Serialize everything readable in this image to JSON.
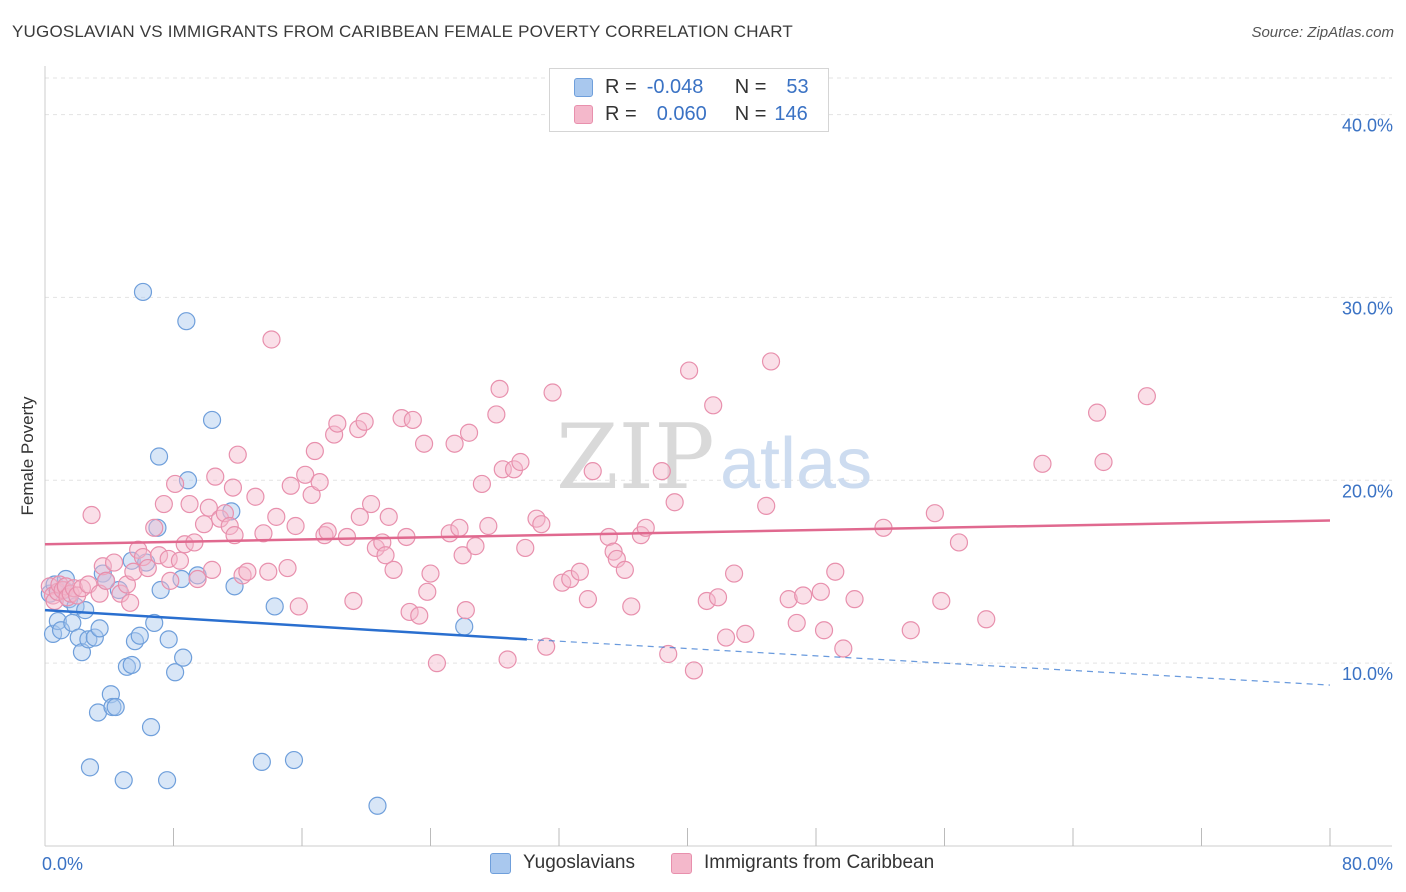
{
  "title": "YUGOSLAVIAN VS IMMIGRANTS FROM CARIBBEAN FEMALE POVERTY CORRELATION CHART",
  "source": "Source: ZipAtlas.com",
  "watermark": {
    "zip": "ZIP",
    "atlas": "atlas"
  },
  "colors": {
    "blue_fill": "#a9c8ee",
    "blue_stroke": "#6f9fdb",
    "blue_line": "#2a6fcf",
    "pink_fill": "#f4b8cb",
    "pink_stroke": "#e890ad",
    "pink_line": "#e0698f",
    "tick_text": "#3a72c4",
    "grid": "#e3e3e3"
  },
  "legend": {
    "rows": [
      {
        "r_label": "R =",
        "r_value": "-0.048",
        "n_label": "N =",
        "n_value": "53",
        "color": "#a9c8ee",
        "border": "#6f9fdb"
      },
      {
        "r_label": "R =",
        "r_value": "0.060",
        "n_label": "N =",
        "n_value": "146",
        "color": "#f4b8cb",
        "border": "#e890ad"
      }
    ]
  },
  "bottom_legend": [
    {
      "label": "Yugoslavians",
      "color": "#a9c8ee",
      "border": "#6f9fdb"
    },
    {
      "label": "Immigrants from Caribbean",
      "color": "#f4b8cb",
      "border": "#e890ad"
    }
  ],
  "chart_data": {
    "type": "scatter",
    "title": "YUGOSLAVIAN VS IMMIGRANTS FROM CARIBBEAN FEMALE POVERTY CORRELATION CHART",
    "xlabel": "",
    "ylabel": "Female Poverty",
    "xlim": [
      0,
      80
    ],
    "ylim": [
      0,
      42
    ],
    "x_tick_labels": [
      {
        "value": 0,
        "label": "0.0%"
      },
      {
        "value": 80,
        "label": "80.0%"
      }
    ],
    "y_tick_labels": [
      {
        "value": 10,
        "label": "10.0%"
      },
      {
        "value": 20,
        "label": "20.0%"
      },
      {
        "value": 30,
        "label": "30.0%"
      },
      {
        "value": 40,
        "label": "40.0%"
      }
    ],
    "series": [
      {
        "name": "Yugoslavians",
        "r": -0.048,
        "n": 53,
        "trend": {
          "x1": 0,
          "y1": 12.9,
          "x2": 30,
          "y2": 11.3,
          "dash_to_x": 80,
          "dash_to_y": 8.8
        },
        "points": [
          [
            0.3,
            13.8
          ],
          [
            0.5,
            11.6
          ],
          [
            0.6,
            14.3
          ],
          [
            0.8,
            12.3
          ],
          [
            1.0,
            11.8
          ],
          [
            1.2,
            14.0
          ],
          [
            1.3,
            14.6
          ],
          [
            1.5,
            13.5
          ],
          [
            1.7,
            12.2
          ],
          [
            1.9,
            13.1
          ],
          [
            2.1,
            11.4
          ],
          [
            2.3,
            10.6
          ],
          [
            2.5,
            12.9
          ],
          [
            2.7,
            11.3
          ],
          [
            2.8,
            4.3
          ],
          [
            3.1,
            11.4
          ],
          [
            3.3,
            7.3
          ],
          [
            3.4,
            11.9
          ],
          [
            3.6,
            14.9
          ],
          [
            3.8,
            14.5
          ],
          [
            4.1,
            8.3
          ],
          [
            4.2,
            7.6
          ],
          [
            4.4,
            7.6
          ],
          [
            4.6,
            14.0
          ],
          [
            4.9,
            3.6
          ],
          [
            5.1,
            9.8
          ],
          [
            5.4,
            9.9
          ],
          [
            5.4,
            15.6
          ],
          [
            5.6,
            11.2
          ],
          [
            6.1,
            30.3
          ],
          [
            5.9,
            11.5
          ],
          [
            6.3,
            15.5
          ],
          [
            6.6,
            6.5
          ],
          [
            6.8,
            12.2
          ],
          [
            7.0,
            17.4
          ],
          [
            7.1,
            21.3
          ],
          [
            7.2,
            14.0
          ],
          [
            7.6,
            3.6
          ],
          [
            7.7,
            11.3
          ],
          [
            8.1,
            9.5
          ],
          [
            8.5,
            14.6
          ],
          [
            8.6,
            10.3
          ],
          [
            8.8,
            28.7
          ],
          [
            8.9,
            20.0
          ],
          [
            9.5,
            14.8
          ],
          [
            10.4,
            23.3
          ],
          [
            11.6,
            18.3
          ],
          [
            11.8,
            14.2
          ],
          [
            13.5,
            4.6
          ],
          [
            14.3,
            13.1
          ],
          [
            15.5,
            4.7
          ],
          [
            20.7,
            2.2
          ],
          [
            26.1,
            12.0
          ]
        ]
      },
      {
        "name": "Immigrants from Caribbean",
        "r": 0.06,
        "n": 146,
        "trend": {
          "x1": 0,
          "y1": 16.5,
          "x2": 80,
          "y2": 17.8
        },
        "points": [
          [
            0.3,
            14.2
          ],
          [
            0.5,
            13.7
          ],
          [
            0.6,
            13.4
          ],
          [
            0.8,
            13.9
          ],
          [
            0.9,
            14.3
          ],
          [
            1.1,
            14.0
          ],
          [
            1.3,
            14.2
          ],
          [
            1.4,
            13.6
          ],
          [
            1.6,
            13.8
          ],
          [
            1.8,
            14.1
          ],
          [
            2.0,
            13.7
          ],
          [
            2.3,
            14.1
          ],
          [
            2.7,
            14.3
          ],
          [
            2.9,
            18.1
          ],
          [
            3.4,
            13.8
          ],
          [
            3.6,
            15.3
          ],
          [
            3.8,
            14.5
          ],
          [
            4.3,
            15.5
          ],
          [
            4.7,
            13.8
          ],
          [
            5.1,
            14.3
          ],
          [
            5.3,
            13.3
          ],
          [
            5.5,
            15.0
          ],
          [
            5.8,
            16.2
          ],
          [
            6.1,
            15.8
          ],
          [
            6.4,
            15.2
          ],
          [
            6.8,
            17.4
          ],
          [
            7.1,
            15.9
          ],
          [
            7.4,
            18.7
          ],
          [
            7.7,
            15.7
          ],
          [
            7.8,
            14.5
          ],
          [
            8.1,
            19.8
          ],
          [
            8.4,
            15.6
          ],
          [
            8.7,
            16.5
          ],
          [
            9.0,
            18.7
          ],
          [
            9.3,
            16.6
          ],
          [
            9.5,
            14.6
          ],
          [
            9.9,
            17.6
          ],
          [
            10.2,
            18.5
          ],
          [
            10.4,
            15.1
          ],
          [
            10.6,
            20.2
          ],
          [
            10.9,
            17.9
          ],
          [
            11.2,
            18.2
          ],
          [
            11.5,
            17.5
          ],
          [
            11.7,
            19.6
          ],
          [
            11.8,
            17.0
          ],
          [
            12.0,
            21.4
          ],
          [
            12.3,
            14.8
          ],
          [
            12.6,
            15.0
          ],
          [
            13.1,
            19.1
          ],
          [
            13.6,
            17.1
          ],
          [
            13.9,
            15.0
          ],
          [
            14.1,
            27.7
          ],
          [
            14.4,
            18.0
          ],
          [
            15.1,
            15.2
          ],
          [
            15.3,
            19.7
          ],
          [
            15.6,
            17.5
          ],
          [
            15.8,
            13.1
          ],
          [
            16.2,
            20.3
          ],
          [
            16.6,
            19.2
          ],
          [
            16.8,
            21.6
          ],
          [
            17.1,
            19.9
          ],
          [
            17.4,
            17.0
          ],
          [
            17.6,
            17.2
          ],
          [
            18.0,
            22.5
          ],
          [
            18.2,
            23.1
          ],
          [
            18.8,
            16.9
          ],
          [
            19.2,
            13.4
          ],
          [
            19.5,
            22.8
          ],
          [
            19.6,
            18.0
          ],
          [
            19.9,
            23.2
          ],
          [
            20.3,
            18.7
          ],
          [
            20.6,
            16.3
          ],
          [
            21.0,
            16.6
          ],
          [
            21.2,
            15.9
          ],
          [
            21.4,
            18.0
          ],
          [
            21.7,
            15.1
          ],
          [
            22.2,
            23.4
          ],
          [
            22.5,
            16.9
          ],
          [
            22.7,
            12.8
          ],
          [
            22.9,
            23.3
          ],
          [
            23.3,
            12.6
          ],
          [
            23.6,
            22.0
          ],
          [
            23.8,
            13.9
          ],
          [
            24.0,
            14.9
          ],
          [
            24.4,
            10.0
          ],
          [
            25.2,
            17.1
          ],
          [
            25.5,
            22.0
          ],
          [
            25.8,
            17.4
          ],
          [
            26.0,
            15.9
          ],
          [
            26.2,
            12.9
          ],
          [
            26.4,
            22.6
          ],
          [
            26.8,
            16.4
          ],
          [
            27.2,
            19.8
          ],
          [
            27.6,
            17.5
          ],
          [
            28.1,
            23.6
          ],
          [
            28.3,
            25.0
          ],
          [
            28.5,
            20.6
          ],
          [
            28.8,
            10.2
          ],
          [
            29.2,
            20.6
          ],
          [
            29.6,
            21.0
          ],
          [
            29.9,
            16.3
          ],
          [
            30.6,
            17.9
          ],
          [
            30.9,
            17.6
          ],
          [
            31.2,
            10.9
          ],
          [
            31.6,
            24.8
          ],
          [
            32.2,
            14.4
          ],
          [
            32.7,
            14.6
          ],
          [
            33.3,
            15.0
          ],
          [
            33.8,
            13.5
          ],
          [
            34.1,
            20.5
          ],
          [
            35.1,
            16.9
          ],
          [
            35.4,
            16.1
          ],
          [
            35.6,
            15.7
          ],
          [
            36.1,
            15.1
          ],
          [
            36.5,
            13.1
          ],
          [
            37.1,
            17.0
          ],
          [
            37.4,
            17.4
          ],
          [
            38.4,
            20.5
          ],
          [
            38.8,
            10.5
          ],
          [
            39.2,
            18.8
          ],
          [
            40.1,
            26.0
          ],
          [
            40.4,
            9.6
          ],
          [
            41.2,
            13.4
          ],
          [
            41.6,
            24.1
          ],
          [
            41.9,
            13.6
          ],
          [
            42.4,
            11.4
          ],
          [
            42.9,
            14.9
          ],
          [
            43.6,
            11.6
          ],
          [
            44.9,
            18.6
          ],
          [
            45.2,
            26.5
          ],
          [
            46.3,
            13.5
          ],
          [
            46.8,
            12.2
          ],
          [
            47.2,
            13.7
          ],
          [
            48.3,
            13.9
          ],
          [
            48.5,
            11.8
          ],
          [
            49.2,
            15.0
          ],
          [
            49.7,
            10.8
          ],
          [
            50.4,
            13.5
          ],
          [
            52.2,
            17.4
          ],
          [
            53.9,
            11.8
          ],
          [
            55.4,
            18.2
          ],
          [
            55.8,
            13.4
          ],
          [
            56.9,
            16.6
          ],
          [
            58.6,
            12.4
          ],
          [
            62.1,
            20.9
          ],
          [
            65.5,
            23.7
          ],
          [
            65.9,
            21.0
          ],
          [
            68.6,
            24.6
          ]
        ]
      }
    ]
  }
}
